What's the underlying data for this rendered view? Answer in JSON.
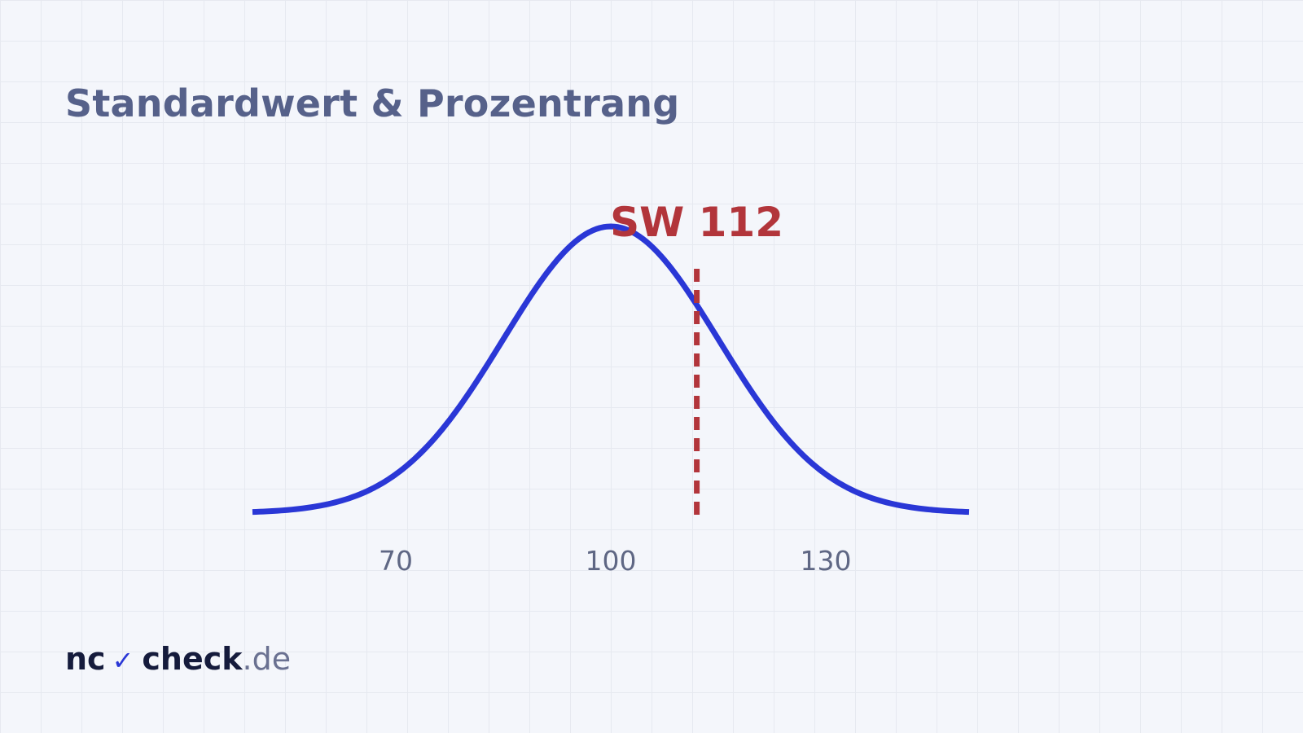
{
  "title": "Standardwert & Prozentrang",
  "logo": {
    "part1": "nc",
    "tick_icon": "check-icon",
    "part2": "check",
    "tld": ".de"
  },
  "colors": {
    "curve": "#2a37d6",
    "marker": "#b2353b",
    "tick_label": "#5f6784",
    "title": "#56618a"
  },
  "chart_data": {
    "type": "line",
    "distribution": "normal",
    "mean": 100,
    "sd": 15,
    "x_range": [
      50,
      150
    ],
    "x_ticks": [
      70,
      100,
      130
    ],
    "grid": true,
    "marker": {
      "label": "SW 112",
      "value": 112,
      "style": "dashed"
    }
  }
}
